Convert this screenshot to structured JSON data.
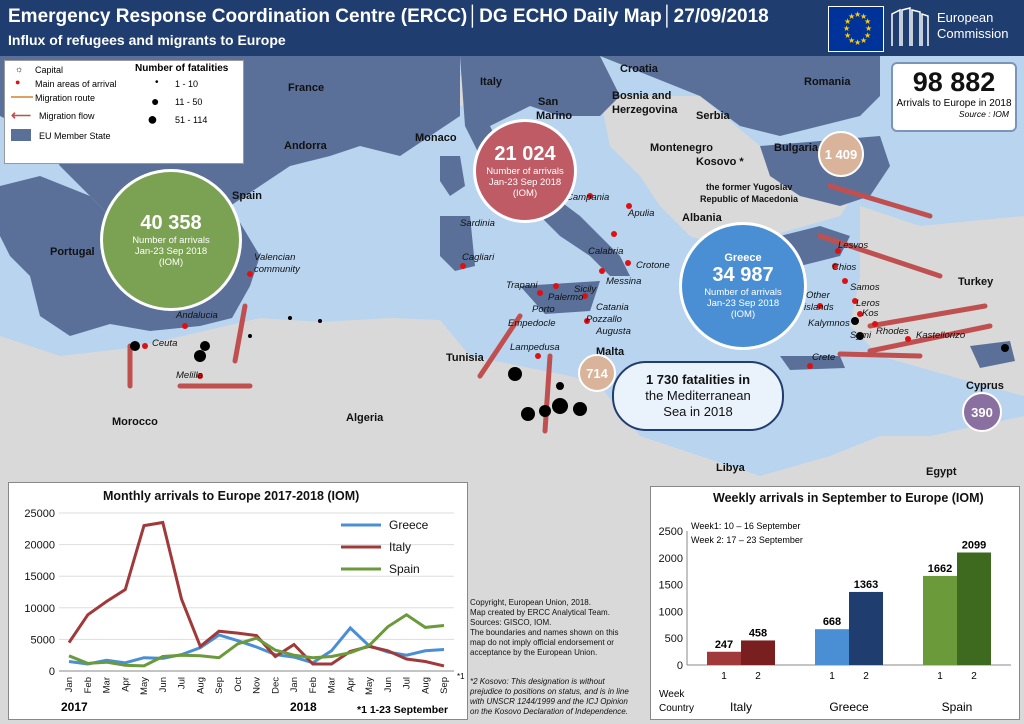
{
  "header": {
    "title": "Emergency Response Coordination Centre (ERCC)│DG ECHO Daily Map│27/09/2018",
    "subtitle": "Influx of refugees and migrants to Europe",
    "logo_text_1": "European",
    "logo_text_2": "Commission"
  },
  "legend": {
    "capital": "Capital",
    "main_areas": "Main areas of arrival",
    "route": "Migration route",
    "flow": "Migration flow",
    "eu": "EU Member State",
    "fatal_title": "Number of fatalities",
    "f1": "1 - 10",
    "f2": "11 - 50",
    "f3": "51 - 114"
  },
  "totals": {
    "value": "98 882",
    "label": "Arrivals to Europe in 2018",
    "source": "Source : IOM"
  },
  "circles": {
    "spain": {
      "value": "40 358",
      "l1": "Number of arrivals",
      "l2": "Jan-23 Sep 2018",
      "l3": "(IOM)"
    },
    "italy": {
      "value": "21 024",
      "l1": "Number of arrivals",
      "l2": "Jan-23 Sep 2018",
      "l3": "(IOM)"
    },
    "greece": {
      "value": "34 987",
      "l1": "Number of arrivals",
      "l2": "Jan-23 Sep 2018",
      "l3": "(IOM)"
    },
    "bulgaria": "1 409",
    "malta": "714",
    "cyprus": "390"
  },
  "fatalities": {
    "l1": "1 730 fatalities in",
    "l2": "the Mediterranean",
    "l3": "Sea in 2018"
  },
  "countries": {
    "france": "France",
    "italy": "Italy",
    "croatia": "Croatia",
    "romania": "Romania",
    "bih1": "Bosnia and",
    "bih2": "Herzegovina",
    "serbia": "Serbia",
    "sanmarino1": "San",
    "sanmarino2": "Marino",
    "monaco": "Monaco",
    "andorra": "Andorra",
    "spain": "Spain",
    "portugal": "Portugal",
    "montenegro": "Montenegro",
    "kosovo": "Kosovo *",
    "bulgaria": "Bulgaria",
    "fyrom1": "the former Yugoslav",
    "fyrom2": "Republic of Macedonia",
    "albania": "Albania",
    "greece": "Greece",
    "turkey": "Turkey",
    "tunisia": "Tunisia",
    "malta": "Malta",
    "algeria": "Algeria",
    "morocco": "Morocco",
    "libya": "Libya",
    "egypt": "Egypt",
    "cyprus": "Cyprus"
  },
  "places": {
    "sardinia": "Sardinia",
    "cagliari": "Cagliari",
    "campania": "Campania",
    "apulia": "Apulia",
    "calabria": "Calabria",
    "crotone": "Crotone",
    "messina": "Messina",
    "trapani": "Trapani",
    "palermo": "Palermo",
    "sicily": "Sicily",
    "catania": "Catania",
    "porto": "Porto",
    "pozzallo": "Pozzallo",
    "augusta": "Augusta",
    "empedocle": "Empedocle",
    "lampedusa": "Lampedusa",
    "valencian1": "Valencian",
    "valencian2": "community",
    "andalucia": "Andalucia",
    "ceuta": "Ceuta",
    "melilla": "Melilla",
    "lesvos": "Lesvos",
    "chios": "Chios",
    "samos": "Samos",
    "leros": "Leros",
    "kos": "Kos",
    "other1": "Other",
    "other2": "islands",
    "kalymnos": "Kalymnos",
    "rhodes": "Rhodes",
    "kastellorizo": "Kastellorizo",
    "symi": "Symi",
    "crete": "Crete"
  },
  "line_chart": {
    "title": "Monthly arrivals to Europe 2017-2018 (IOM)",
    "yticks": [
      "25000",
      "20000",
      "15000",
      "10000",
      "5000",
      "0"
    ],
    "months": [
      "Jan",
      "Feb",
      "Mar",
      "Apr",
      "May",
      "Jun",
      "Jul",
      "Aug",
      "Sep",
      "Oct",
      "Nov",
      "Dec",
      "Jan",
      "Feb",
      "Mar",
      "Apr",
      "May",
      "Jun",
      "Jul",
      "Aug",
      "Sep"
    ],
    "year1": "2017",
    "year2": "2018",
    "footnote": "*1  1-23 September",
    "sup": "*1"
  },
  "disclaimer": {
    "l1": "Copyright, European Union, 2018.",
    "l2": "Map created by ERCC Analytical Team.",
    "l3": "Sources: GISCO, IOM.",
    "l4": "The boundaries and names shown on this",
    "l5": "map do not imply  official endorsement or",
    "l6": "acceptance by the European Union.",
    "k1": "*2 Kosovo: This designation is without",
    "k2": "prejudice to positions on status, and is in line",
    "k3": "with UNSCR 1244/1999 and the ICJ Opinion",
    "k4": "on the Kosovo Declaration of Independence."
  },
  "bar_chart": {
    "title": "Weekly arrivals in September to Europe (IOM)",
    "week1": "Week1: 10 – 16 September",
    "week2": "Week 2: 17 – 23 September",
    "yticks": [
      "2500",
      "2000",
      "1500",
      "1000",
      "500",
      "0"
    ],
    "week_label": "Week",
    "country_label": "Country",
    "w1": "1",
    "w2": "2"
  },
  "chart_data": [
    {
      "type": "line",
      "title": "Monthly arrivals to Europe 2017-2018 (IOM)",
      "x": [
        "Jan",
        "Feb",
        "Mar",
        "Apr",
        "May",
        "Jun",
        "Jul",
        "Aug",
        "Sep",
        "Oct",
        "Nov",
        "Dec",
        "Jan",
        "Feb",
        "Mar",
        "Apr",
        "May",
        "Jun",
        "Jul",
        "Aug",
        "Sep"
      ],
      "ylim": [
        0,
        25000
      ],
      "legend": "top-right",
      "series": [
        {
          "name": "Greece",
          "color": "#4a8fd4",
          "values": [
            1500,
            1100,
            1700,
            1300,
            2100,
            2000,
            2600,
            3700,
            5700,
            4800,
            3800,
            2600,
            2200,
            1300,
            3200,
            6800,
            4000,
            3000,
            2500,
            3200,
            3400
          ]
        },
        {
          "name": "Italy",
          "color": "#a03a3a",
          "values": [
            4500,
            8900,
            11000,
            12900,
            23000,
            23500,
            11400,
            3900,
            6300,
            6000,
            5600,
            2300,
            4200,
            1100,
            1100,
            3100,
            3900,
            3200,
            1900,
            1500,
            800
          ]
        },
        {
          "name": "Spain",
          "color": "#6a9a3a",
          "values": [
            2400,
            1200,
            1400,
            900,
            800,
            2300,
            2500,
            2400,
            2100,
            4300,
            5200,
            3300,
            2500,
            2100,
            2300,
            2900,
            4000,
            7000,
            8900,
            6900,
            7200
          ]
        }
      ]
    },
    {
      "type": "bar",
      "title": "Weekly arrivals in September to Europe (IOM)",
      "categories": [
        "Italy",
        "Greece",
        "Spain"
      ],
      "ylim": [
        0,
        2500
      ],
      "series": [
        {
          "name": "1",
          "values": [
            247,
            668,
            1662
          ],
          "colors": [
            "#a03a3a",
            "#4a8fd4",
            "#6a9a3a"
          ]
        },
        {
          "name": "2",
          "values": [
            458,
            1363,
            2099
          ],
          "colors": [
            "#7a1f1f",
            "#1f3d6e",
            "#3d6a1f"
          ]
        }
      ]
    }
  ]
}
